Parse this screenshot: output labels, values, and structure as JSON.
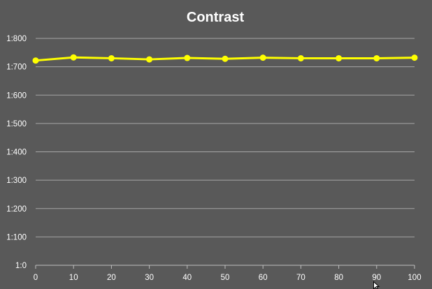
{
  "chart_data": {
    "type": "line",
    "title": "Contrast",
    "xlabel": "",
    "ylabel": "",
    "x": [
      0,
      10,
      20,
      30,
      40,
      50,
      60,
      70,
      80,
      90,
      100
    ],
    "x_tick_labels": [
      "0",
      "10",
      "20",
      "30",
      "40",
      "50",
      "60",
      "70",
      "80",
      "90",
      "100"
    ],
    "xlim": [
      0,
      100
    ],
    "y_tick_values": [
      0,
      100,
      200,
      300,
      400,
      500,
      600,
      700,
      800
    ],
    "y_tick_labels": [
      "1:0",
      "1:100",
      "1:200",
      "1:300",
      "1:400",
      "1:500",
      "1:600",
      "1:700",
      "1:800"
    ],
    "ylim": [
      0,
      800
    ],
    "grid": true,
    "legend": "none",
    "series": [
      {
        "color": "#ffff00",
        "marker": "circle",
        "values": [
          722,
          733,
          730,
          726,
          731,
          728,
          732,
          730,
          730,
          730,
          732
        ]
      }
    ]
  },
  "colors": {
    "background": "#595959",
    "gridline": "#a6a6a6",
    "text": "#ffffff"
  },
  "icons": [
    "mouse-cursor-icon"
  ]
}
